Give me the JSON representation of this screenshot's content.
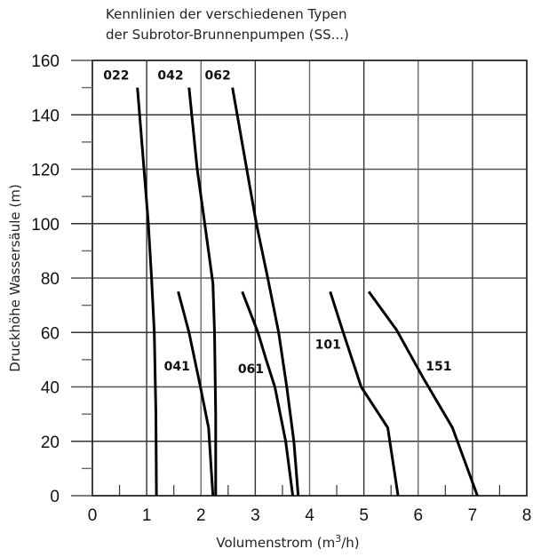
{
  "chart_data": {
    "type": "line",
    "title": "Kennlinien der verschiedenen Typen\nder Subrotor-Brunnenpumpen (SS...)",
    "xlabel": "Volumenstrom (m3/h)",
    "xlabel_main": "Volumenstrom (m",
    "xlabel_sup": "3",
    "xlabel_tail": "/h)",
    "ylabel": "Druckhöhe Wassersäule (m)",
    "xlim": [
      0,
      8
    ],
    "ylim": [
      0,
      160
    ],
    "xticks": [
      0,
      1,
      2,
      3,
      4,
      5,
      6,
      7,
      8
    ],
    "yticks": [
      0,
      20,
      40,
      60,
      80,
      100,
      120,
      140,
      160
    ],
    "grid": true,
    "legend": "inline labels",
    "series": [
      {
        "name": "022",
        "points": [
          [
            0.83,
            150
          ],
          [
            0.95,
            120
          ],
          [
            1.03,
            100
          ],
          [
            1.09,
            80
          ],
          [
            1.14,
            60
          ],
          [
            1.17,
            30
          ],
          [
            1.18,
            0
          ]
        ],
        "label_pos": [
          0.2,
          153
        ]
      },
      {
        "name": "042",
        "points": [
          [
            1.78,
            150
          ],
          [
            1.93,
            120
          ],
          [
            2.07,
            100
          ],
          [
            2.22,
            78
          ],
          [
            2.25,
            60
          ],
          [
            2.27,
            30
          ],
          [
            2.27,
            0
          ]
        ],
        "label_pos": [
          1.2,
          153
        ]
      },
      {
        "name": "062",
        "points": [
          [
            2.58,
            150
          ],
          [
            2.8,
            125
          ],
          [
            3.02,
            100
          ],
          [
            3.23,
            80
          ],
          [
            3.43,
            60
          ],
          [
            3.58,
            40
          ],
          [
            3.71,
            20
          ],
          [
            3.79,
            0
          ]
        ],
        "label_pos": [
          2.07,
          153
        ]
      },
      {
        "name": "041",
        "points": [
          [
            1.58,
            75
          ],
          [
            1.78,
            60
          ],
          [
            1.99,
            40
          ],
          [
            2.14,
            25
          ],
          [
            2.22,
            0
          ]
        ],
        "label_pos": [
          1.32,
          46
        ]
      },
      {
        "name": "061",
        "points": [
          [
            2.76,
            75
          ],
          [
            3.05,
            60
          ],
          [
            3.2,
            50
          ],
          [
            3.36,
            40
          ],
          [
            3.56,
            20
          ],
          [
            3.69,
            0
          ]
        ],
        "label_pos": [
          2.68,
          45
        ]
      },
      {
        "name": "101",
        "points": [
          [
            4.38,
            75
          ],
          [
            4.62,
            60
          ],
          [
            4.95,
            40
          ],
          [
            5.44,
            25
          ],
          [
            5.63,
            0
          ]
        ],
        "label_pos": [
          4.1,
          54
        ]
      },
      {
        "name": "151",
        "points": [
          [
            5.09,
            75
          ],
          [
            5.6,
            61
          ],
          [
            6.1,
            43
          ],
          [
            6.63,
            25
          ],
          [
            7.09,
            0
          ]
        ],
        "label_pos": [
          6.14,
          46
        ]
      }
    ]
  }
}
